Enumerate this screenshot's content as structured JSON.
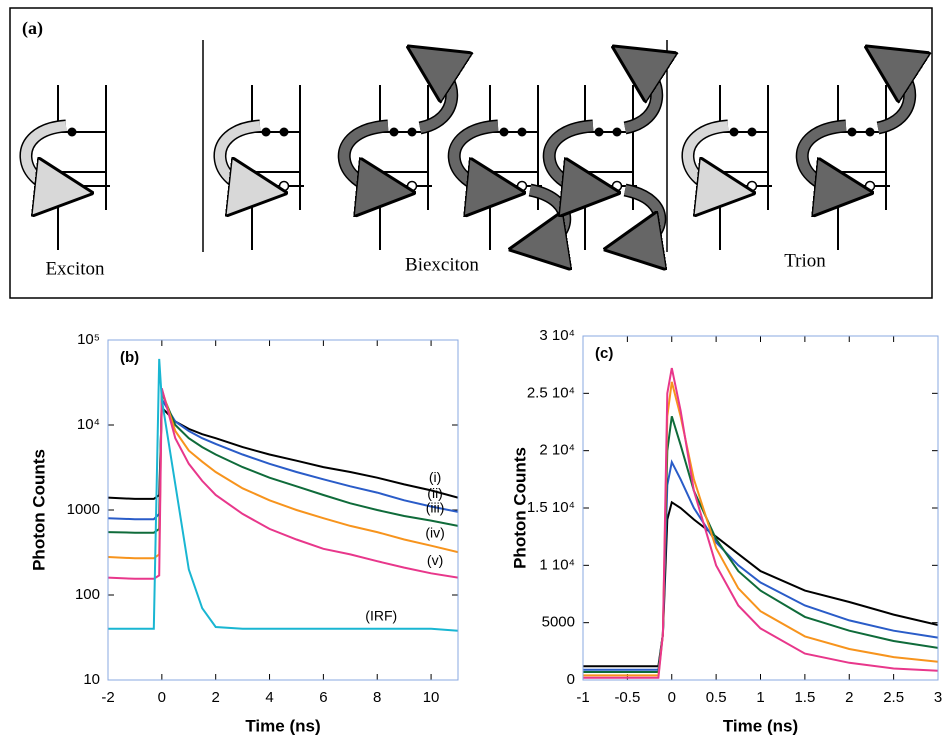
{
  "diagram": {
    "label": "(a)",
    "groups": [
      {
        "label": "Exciton"
      },
      {
        "label": "Biexciton"
      },
      {
        "label": "Trion"
      }
    ]
  },
  "chart_data": [
    {
      "type": "line",
      "panel_label": "(b)",
      "x_label": "Time (ns)",
      "y_label": "Photon Counts",
      "log_y": true,
      "xlim": [
        -2,
        11
      ],
      "xticks": [
        -2,
        0,
        2,
        4,
        6,
        8,
        10
      ],
      "ylim": [
        10,
        100000
      ],
      "yticks": [
        10,
        100,
        1000,
        {
          "value": 10000,
          "label": "10⁴"
        },
        {
          "value": 100000,
          "label": "10⁵"
        }
      ],
      "x": [
        -2,
        -1,
        -0.3,
        -0.1,
        0,
        0.5,
        1,
        1.5,
        2,
        3,
        4,
        5,
        6,
        7,
        8,
        9,
        10,
        11
      ],
      "series": [
        {
          "name": "(i)",
          "color": "#000000",
          "values": [
            1400,
            1350,
            1350,
            1500,
            16000,
            11000,
            9000,
            7800,
            7000,
            5500,
            4500,
            3800,
            3200,
            2800,
            2400,
            2000,
            1700,
            1400
          ]
        },
        {
          "name": "(ii)",
          "color": "#2a5cc8",
          "values": [
            800,
            780,
            780,
            900,
            20000,
            11000,
            8500,
            7000,
            6000,
            4500,
            3500,
            2800,
            2300,
            1900,
            1600,
            1300,
            1100,
            950
          ]
        },
        {
          "name": "(iii)",
          "color": "#0f6b3a",
          "values": [
            550,
            540,
            540,
            600,
            24000,
            10000,
            7000,
            5500,
            4500,
            3200,
            2400,
            1900,
            1500,
            1200,
            1000,
            850,
            750,
            650
          ]
        },
        {
          "name": "(iv)",
          "color": "#f7941d",
          "values": [
            280,
            270,
            270,
            300,
            26000,
            8500,
            5000,
            3700,
            2800,
            1800,
            1300,
            1000,
            800,
            650,
            550,
            450,
            380,
            320
          ]
        },
        {
          "name": "(v)",
          "color": "#e8378b",
          "values": [
            160,
            155,
            155,
            170,
            27000,
            7000,
            3500,
            2200,
            1500,
            900,
            600,
            450,
            350,
            300,
            250,
            210,
            180,
            160
          ]
        },
        {
          "name": "(IRF)",
          "color": "#19b6d2",
          "values": [
            40,
            40,
            40,
            60000,
            20000,
            2000,
            200,
            70,
            42,
            40,
            40,
            40,
            40,
            40,
            40,
            40,
            40,
            38
          ]
        }
      ]
    },
    {
      "type": "line",
      "panel_label": "(c)",
      "x_label": "Time (ns)",
      "y_label": "Photon Counts",
      "log_y": false,
      "xlim": [
        -1,
        3
      ],
      "xticks": [
        -1,
        -0.5,
        0,
        0.5,
        1,
        1.5,
        2,
        2.5,
        3
      ],
      "ylim": [
        0,
        30000
      ],
      "yticks": [
        0,
        5000,
        {
          "value": 10000,
          "label": "1 10⁴"
        },
        {
          "value": 15000,
          "label": "1.5 10⁴"
        },
        {
          "value": 20000,
          "label": "2 10⁴"
        },
        {
          "value": 25000,
          "label": "2.5 10⁴"
        },
        {
          "value": 30000,
          "label": "3 10⁴"
        }
      ],
      "x": [
        -1,
        -0.5,
        -0.15,
        -0.1,
        -0.05,
        0,
        0.1,
        0.25,
        0.5,
        0.75,
        1,
        1.5,
        2,
        2.5,
        3
      ],
      "series": [
        {
          "color": "#000000",
          "values": [
            1200,
            1200,
            1200,
            4000,
            14000,
            15500,
            15000,
            14000,
            12500,
            11000,
            9500,
            7800,
            6800,
            5700,
            4800
          ]
        },
        {
          "color": "#2a5cc8",
          "values": [
            900,
            900,
            900,
            4000,
            17000,
            19000,
            17500,
            15000,
            12000,
            10000,
            8500,
            6500,
            5200,
            4300,
            3700
          ]
        },
        {
          "color": "#0f6b3a",
          "values": [
            700,
            700,
            700,
            4000,
            20000,
            23000,
            20500,
            16500,
            12300,
            9500,
            7800,
            5500,
            4300,
            3400,
            2800
          ]
        },
        {
          "color": "#f7941d",
          "values": [
            400,
            400,
            400,
            4000,
            23000,
            26000,
            23000,
            17500,
            11500,
            8000,
            6000,
            3800,
            2700,
            2000,
            1600
          ]
        },
        {
          "color": "#e8378b",
          "values": [
            200,
            200,
            200,
            4000,
            25000,
            27200,
            23500,
            16500,
            10000,
            6500,
            4500,
            2300,
            1500,
            1000,
            800
          ]
        }
      ]
    }
  ]
}
